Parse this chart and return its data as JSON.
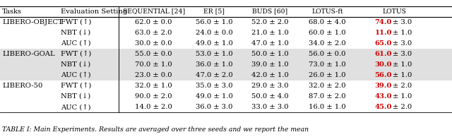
{
  "header_row1": [
    "Tasks",
    "Evaluation Setting",
    "SEQUENTIAL [24]",
    "ER [5]",
    "BUDS [60]",
    "LOTUS-ft",
    "LOTUS"
  ],
  "rows": [
    {
      "task": "LIBERO-OBJECT",
      "metrics": [
        {
          "metric": "FWT (↑)",
          "values": [
            "62.0 ± 0.0",
            "56.0 ± 1.0",
            "52.0 ± 2.0",
            "68.0 ± 4.0",
            "74.0 ± 3.0"
          ]
        },
        {
          "metric": "NBT (↓)",
          "values": [
            "63.0 ± 2.0",
            "24.0 ± 0.0",
            "21.0 ± 1.0",
            "60.0 ± 1.0",
            "11.0 ± 1.0"
          ]
        },
        {
          "metric": "AUC (↑)",
          "values": [
            "30.0 ± 0.0",
            "49.0 ± 1.0",
            "47.0 ± 1.0",
            "34.0 ± 2.0",
            "65.0 ± 3.0"
          ]
        }
      ],
      "shaded": false
    },
    {
      "task": "LIBERO-GOAL",
      "metrics": [
        {
          "metric": "FWT (↑)",
          "values": [
            "55.0 ± 0.0",
            "53.0 ± 1.0",
            "50.0 ± 1.0",
            "56.0 ± 0.0",
            "61.0 ± 3.0"
          ]
        },
        {
          "metric": "NBT (↓)",
          "values": [
            "70.0 ± 1.0",
            "36.0 ± 1.0",
            "39.0 ± 1.0",
            "73.0 ± 1.0",
            "30.0 ± 1.0"
          ]
        },
        {
          "metric": "AUC (↑)",
          "values": [
            "23.0 ± 0.0",
            "47.0 ± 2.0",
            "42.0 ± 1.0",
            "26.0 ± 1.0",
            "56.0 ± 1.0"
          ]
        }
      ],
      "shaded": true
    },
    {
      "task": "LIBERO-50",
      "metrics": [
        {
          "metric": "FWT (↑)",
          "values": [
            "32.0 ± 1.0",
            "35.0 ± 3.0",
            "29.0 ± 3.0",
            "32.0 ± 2.0",
            "39.0 ± 2.0"
          ]
        },
        {
          "metric": "NBT (↓)",
          "values": [
            "90.0 ± 2.0",
            "49.0 ± 1.0",
            "50.0 ± 4.0",
            "87.0 ± 2.0",
            "43.0 ± 1.0"
          ]
        },
        {
          "metric": "AUC (↑)",
          "values": [
            "14.0 ± 2.0",
            "36.0 ± 3.0",
            "33.0 ± 3.0",
            "16.0 ± 1.0",
            "45.0 ± 2.0"
          ]
        }
      ],
      "shaded": false
    }
  ],
  "footer": "TABLE I: Main Experiments. Results are averaged over three seeds and we report the mean",
  "highlight_color": "#cc0000",
  "shade_color": "#e0e0e0",
  "bg_color": "#ffffff",
  "font_size": 7.2,
  "header_font_size": 7.2
}
